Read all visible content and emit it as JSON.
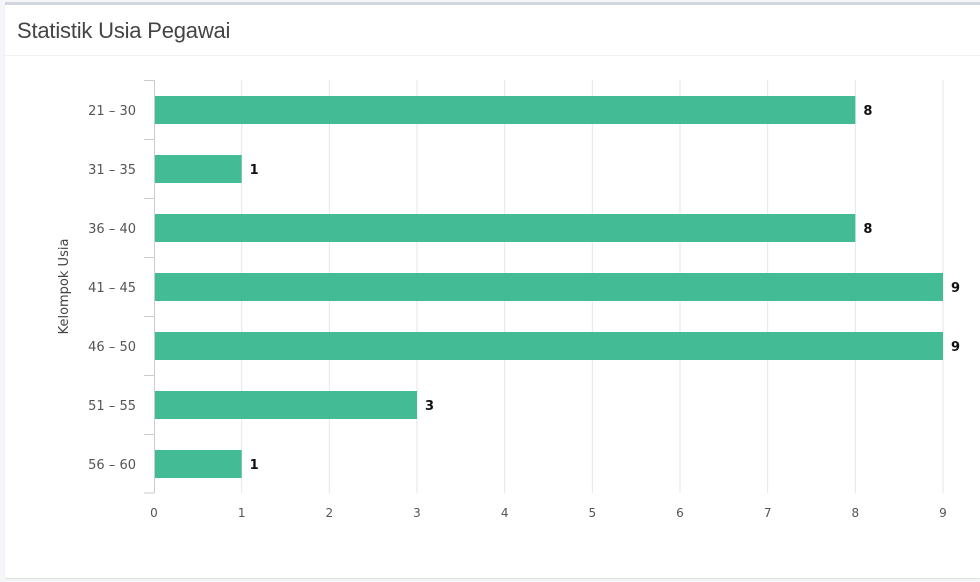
{
  "card": {
    "title": "Statistik Usia Pegawai"
  },
  "chart_data": {
    "type": "bar",
    "orientation": "horizontal",
    "title": "",
    "xlabel": "",
    "ylabel": "Kelompok Usia",
    "categories": [
      "21 – 30",
      "31 – 35",
      "36 – 40",
      "41 – 45",
      "46 – 50",
      "51 – 55",
      "56 – 60"
    ],
    "values": [
      8,
      1,
      8,
      9,
      9,
      3,
      1
    ],
    "xlim": [
      0,
      9
    ],
    "xticks": [
      0,
      1,
      2,
      3,
      4,
      5,
      6,
      7,
      8,
      9
    ],
    "grid": true,
    "legend": "none",
    "data_labels": true,
    "bar_color": "#43bb95",
    "grid_color": "#e6e6e6"
  }
}
